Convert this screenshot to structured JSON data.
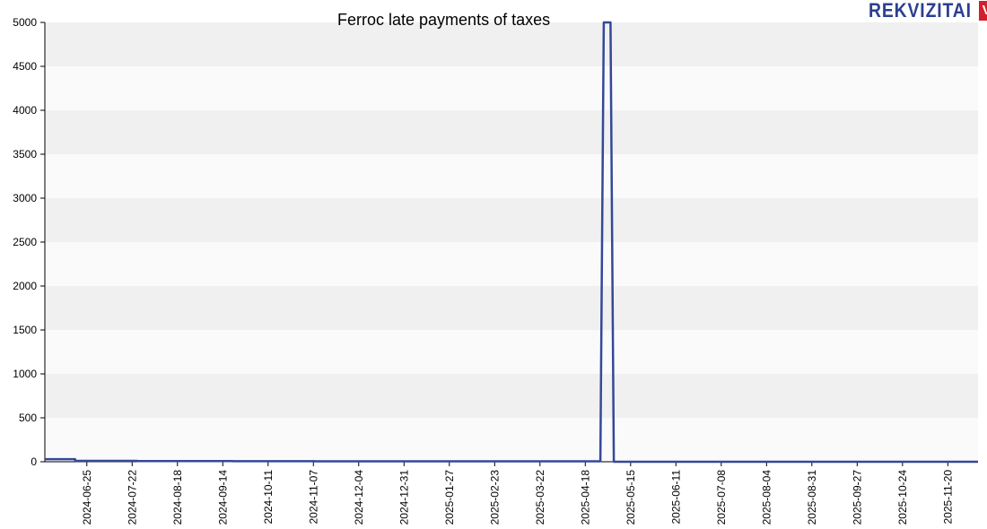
{
  "title": "Ferroc late payments of taxes",
  "logo": {
    "text": "REKVIZITAI",
    "badge": "VŽ"
  },
  "colors": {
    "line": "#34489a",
    "band_dark": "#f0f0f0",
    "band_light": "#fafafa",
    "axis": "#000000",
    "logo_text": "#2b3f8f",
    "logo_badge": "#d21f2b"
  },
  "chart_data": {
    "type": "line",
    "title": "Ferroc late payments of taxes",
    "xlabel": "",
    "ylabel": "",
    "ylim": [
      0,
      5000
    ],
    "yticks": [
      0,
      500,
      1000,
      1500,
      2000,
      2500,
      3000,
      3500,
      4000,
      4500,
      5000
    ],
    "xlim": [
      "2024-05-31",
      "2025-12-08"
    ],
    "xticks": [
      "2024-06-25",
      "2024-07-22",
      "2024-08-18",
      "2024-09-14",
      "2024-10-11",
      "2024-11-07",
      "2024-12-04",
      "2024-12-31",
      "2025-01-27",
      "2025-02-23",
      "2025-03-22",
      "2025-04-18",
      "2025-05-15",
      "2025-06-11",
      "2025-07-08",
      "2025-08-04",
      "2025-08-31",
      "2025-09-27",
      "2025-10-24",
      "2025-11-20"
    ],
    "grid": "horizontal bands",
    "legend": "none",
    "series": [
      {
        "x": [
          "2024-05-31",
          "2024-06-18",
          "2024-06-18",
          "2024-07-25",
          "2024-07-25",
          "2024-09-20",
          "2024-09-20",
          "2024-11-08",
          "2024-11-08",
          "2025-04-27",
          "2025-04-29",
          "2025-05-03",
          "2025-05-05",
          "2025-12-08"
        ],
        "values": [
          30,
          30,
          10,
          10,
          8,
          8,
          6,
          6,
          5,
          5,
          5000,
          5000,
          0,
          0
        ]
      }
    ]
  }
}
